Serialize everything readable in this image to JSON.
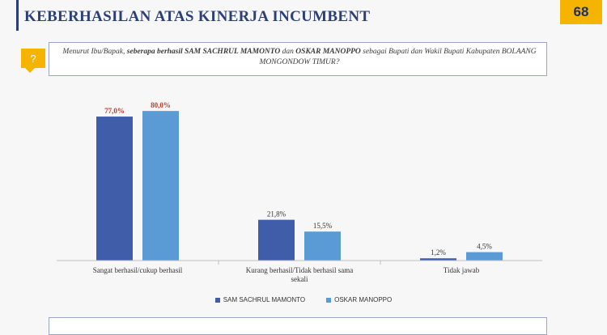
{
  "header": {
    "title": "KEBERHASILAN ATAS KINERJA INCUMBENT",
    "page_number": "68"
  },
  "question": {
    "icon": "?",
    "intro": "Menurut Ibu/Bapak,",
    "phrase": "seberapa berhasil SAM SACHRUL MAMONTO",
    "connector": "dan",
    "person2": "OSKAR MANOPPO",
    "rest": "sebagai Bupati dan Wakil Bupati Kabupaten BOLAANG MONGONDOW TIMUR?"
  },
  "chart_data": {
    "type": "bar",
    "categories": [
      "Sangat berhasil/cukup berhasil",
      "Kurang berhasil/Tidak berhasil sama sekali",
      "Tidak jawab"
    ],
    "category_lines": [
      [
        "Sangat berhasil/cukup berhasil"
      ],
      [
        "Kurang berhasil/Tidak berhasil sama",
        "sekali"
      ],
      [
        "Tidak jawab"
      ]
    ],
    "series": [
      {
        "name": "SAM SACHRUL MAMONTO",
        "values": [
          77.0,
          21.8,
          1.2
        ],
        "labels": [
          "77,0%",
          "21,8%",
          "1,2%"
        ],
        "color": "#3f5da8"
      },
      {
        "name": "OSKAR MANOPPO",
        "values": [
          80.0,
          15.5,
          4.5
        ],
        "labels": [
          "80,0%",
          "15,5%",
          "4,5%"
        ],
        "color": "#5b9bd5"
      }
    ],
    "highlight_label_color": "#c0392b",
    "normal_label_color": "#333333",
    "ylim": [
      0,
      100
    ],
    "grid": false,
    "legend": "bottom-center"
  }
}
